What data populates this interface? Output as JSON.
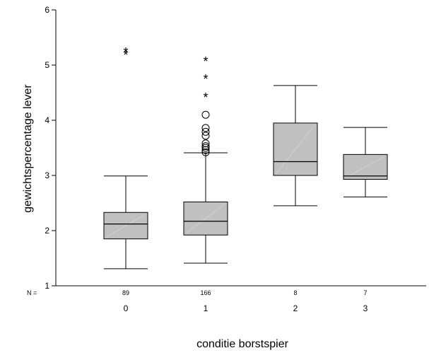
{
  "chart_data": {
    "type": "box",
    "title": "",
    "xlabel": "conditie borstspier",
    "ylabel": "gewichtspercentage lever",
    "ylim": [
      1,
      6
    ],
    "yticks": [
      1,
      2,
      3,
      4,
      5,
      6
    ],
    "grid": false,
    "n_label": "N =",
    "categories": [
      "0",
      "1",
      "2",
      "3"
    ],
    "n_values": [
      "89",
      "166",
      "8",
      "7"
    ],
    "box_fill": "#c0c0c0",
    "boxes": [
      {
        "category": "0",
        "n": 89,
        "whisker_low": 1.31,
        "q1": 1.85,
        "median": 2.12,
        "q3": 2.33,
        "whisker_high": 2.99,
        "outliers": [],
        "extremes": [
          5.22,
          5.27
        ]
      },
      {
        "category": "1",
        "n": 166,
        "whisker_low": 1.41,
        "q1": 1.92,
        "median": 2.17,
        "q3": 2.52,
        "whisker_high": 3.41,
        "outliers": [
          3.42,
          3.46,
          3.5,
          3.53,
          3.58,
          3.72,
          3.79,
          3.86,
          4.1
        ],
        "extremes": [
          4.45,
          4.78,
          5.1
        ]
      },
      {
        "category": "2",
        "n": 8,
        "whisker_low": 2.45,
        "q1": 3.0,
        "median": 3.25,
        "q3": 3.95,
        "whisker_high": 4.63,
        "outliers": [],
        "extremes": []
      },
      {
        "category": "3",
        "n": 7,
        "whisker_low": 2.61,
        "q1": 2.93,
        "median": 2.99,
        "q3": 3.38,
        "whisker_high": 3.87,
        "outliers": [],
        "extremes": []
      }
    ]
  }
}
